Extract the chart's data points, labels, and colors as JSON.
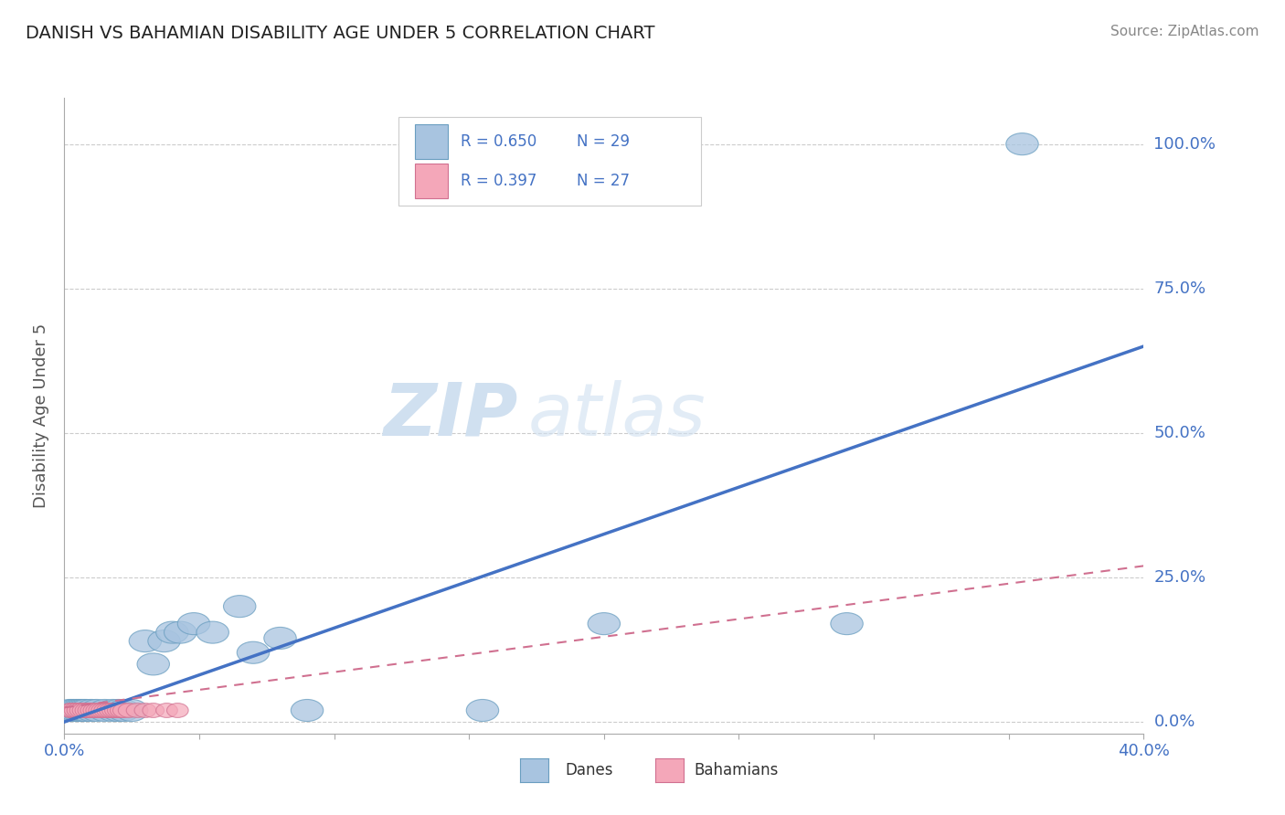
{
  "title": "DANISH VS BAHAMIAN DISABILITY AGE UNDER 5 CORRELATION CHART",
  "source": "Source: ZipAtlas.com",
  "ylabel": "Disability Age Under 5",
  "xlim": [
    0.0,
    0.4
  ],
  "ylim": [
    -0.02,
    1.08
  ],
  "ytick_values": [
    0.0,
    0.25,
    0.5,
    0.75,
    1.0
  ],
  "xtick_values": [
    0.0,
    0.05,
    0.1,
    0.15,
    0.2,
    0.25,
    0.3,
    0.35,
    0.4
  ],
  "danes_R": 0.65,
  "danes_N": 29,
  "bahamians_R": 0.397,
  "bahamians_N": 27,
  "danes_color": "#a8c4e0",
  "danes_edge_color": "#6a9ec0",
  "danes_line_color": "#4472c4",
  "bahamians_color": "#f4a7b9",
  "bahamians_edge_color": "#d07090",
  "bahamians_line_color": "#d07090",
  "grid_color": "#cccccc",
  "background_color": "#ffffff",
  "title_color": "#222222",
  "ylabel_color": "#555555",
  "tick_label_color": "#4472c4",
  "danes_trend_x": [
    0.0,
    0.4
  ],
  "danes_trend_y": [
    0.0,
    0.65
  ],
  "bahamians_trend_x": [
    0.0,
    0.4
  ],
  "bahamians_trend_y": [
    0.025,
    0.27
  ],
  "danes_x": [
    0.002,
    0.003,
    0.004,
    0.005,
    0.006,
    0.007,
    0.008,
    0.01,
    0.012,
    0.015,
    0.018,
    0.02,
    0.022,
    0.025,
    0.03,
    0.033,
    0.037,
    0.04,
    0.043,
    0.048,
    0.055,
    0.065,
    0.07,
    0.08,
    0.09,
    0.155,
    0.2,
    0.29,
    0.355
  ],
  "danes_y": [
    0.02,
    0.02,
    0.02,
    0.02,
    0.02,
    0.02,
    0.02,
    0.02,
    0.02,
    0.02,
    0.02,
    0.02,
    0.02,
    0.02,
    0.14,
    0.1,
    0.14,
    0.155,
    0.155,
    0.17,
    0.155,
    0.2,
    0.12,
    0.145,
    0.02,
    0.02,
    0.17,
    0.17,
    1.0
  ],
  "bahamians_x": [
    0.002,
    0.003,
    0.004,
    0.005,
    0.006,
    0.007,
    0.008,
    0.009,
    0.01,
    0.011,
    0.012,
    0.013,
    0.014,
    0.015,
    0.016,
    0.017,
    0.018,
    0.019,
    0.02,
    0.021,
    0.022,
    0.024,
    0.027,
    0.03,
    0.033,
    0.038,
    0.042
  ],
  "bahamians_y": [
    0.02,
    0.02,
    0.02,
    0.02,
    0.02,
    0.02,
    0.02,
    0.02,
    0.02,
    0.02,
    0.02,
    0.02,
    0.02,
    0.02,
    0.02,
    0.02,
    0.02,
    0.02,
    0.02,
    0.02,
    0.02,
    0.02,
    0.02,
    0.02,
    0.02,
    0.02,
    0.02
  ],
  "watermark_zip_color": "#d0e0f0",
  "watermark_atlas_color": "#d0e0f0"
}
